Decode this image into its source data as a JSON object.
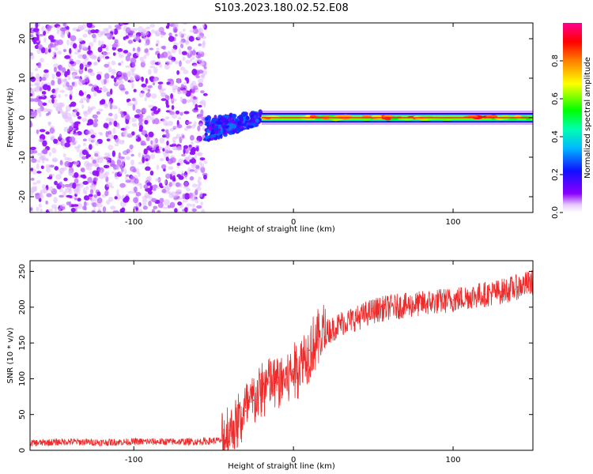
{
  "figure": {
    "title": "S103.2023.180.02.52.E08"
  },
  "chart_data": [
    {
      "type": "heatmap",
      "panel": "top",
      "xlabel": "Height of straight line (km)",
      "ylabel": "Frequency (Hz)",
      "xlim": [
        -165,
        150
      ],
      "ylim": [
        -24,
        24
      ],
      "xticks": [
        -100,
        0,
        100
      ],
      "yticks": [
        -20,
        -10,
        0,
        10,
        20
      ],
      "grid": false,
      "colorbar": {
        "label": "Normalized spectral amplitude",
        "range": [
          0,
          1
        ],
        "ticks": [
          0.0,
          0.2,
          0.4,
          0.6,
          0.8
        ],
        "colormap": "rainbow (white-violet-blue-cyan-green-yellow-red-magenta)"
      },
      "regions": [
        {
          "x_range": [
            -165,
            -55
          ],
          "description": "Noise",
          "amplitude": [
            0.0,
            0.1
          ]
        },
        {
          "x_range": [
            -55,
            -20
          ],
          "description": "Emerging tone",
          "frequency_hz": [
            -3,
            0
          ],
          "amplitude": [
            0.1,
            0.3
          ]
        },
        {
          "x_range": [
            -20,
            150
          ],
          "description": "Carrier tone",
          "frequency_hz": 0,
          "amplitude": [
            0.5,
            0.9
          ]
        }
      ]
    },
    {
      "type": "line",
      "panel": "bottom",
      "xlabel": "Height of straight line (km)",
      "ylabel": "SNR (10 * v/v)",
      "xlim": [
        -165,
        150
      ],
      "ylim": [
        0,
        265
      ],
      "xticks": [
        -100,
        0,
        100
      ],
      "yticks": [
        0,
        50,
        100,
        150,
        200,
        250
      ],
      "grid": false,
      "series": [
        {
          "color": "#ee2a2a",
          "x": [
            -165,
            -140,
            -120,
            -100,
            -80,
            -60,
            -45,
            -40,
            -35,
            -30,
            -25,
            -20,
            -15,
            -10,
            -5,
            0,
            5,
            10,
            15,
            20,
            25,
            30,
            40,
            50,
            60,
            70,
            80,
            90,
            100,
            110,
            120,
            130,
            140,
            150
          ],
          "y": [
            10,
            12,
            11,
            12,
            12,
            12,
            14,
            28,
            40,
            55,
            70,
            85,
            95,
            95,
            100,
            110,
            125,
            140,
            155,
            165,
            170,
            178,
            185,
            195,
            200,
            202,
            205,
            208,
            210,
            215,
            218,
            222,
            228,
            235
          ]
        }
      ]
    }
  ]
}
